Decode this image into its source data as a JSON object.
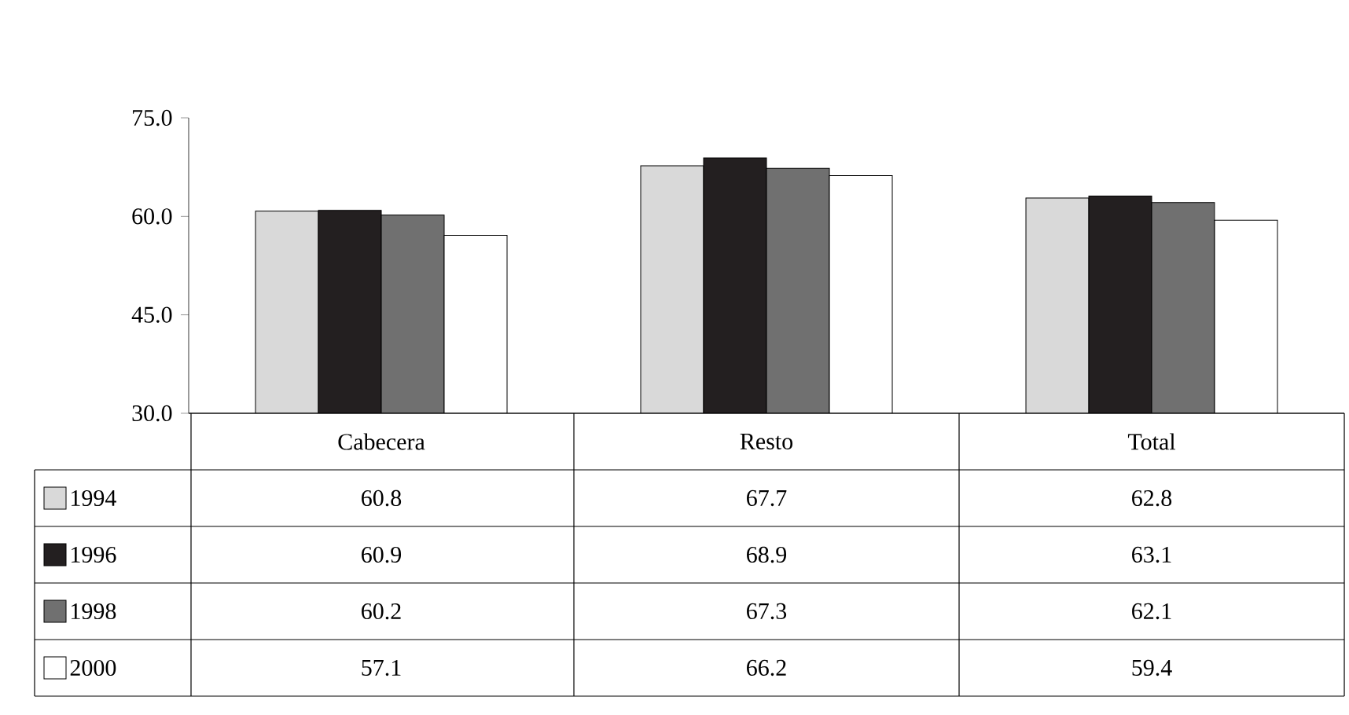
{
  "chart_data": {
    "type": "bar",
    "categories": [
      "Cabecera",
      "Resto",
      "Total"
    ],
    "series": [
      {
        "name": "1994",
        "color": "#d9d9d9",
        "values": [
          60.8,
          67.7,
          62.8
        ]
      },
      {
        "name": "1996",
        "color": "#231f20",
        "values": [
          60.9,
          68.9,
          63.1
        ]
      },
      {
        "name": "1998",
        "color": "#707070",
        "values": [
          60.2,
          67.3,
          62.1
        ]
      },
      {
        "name": "2000",
        "color": "#ffffff",
        "values": [
          57.1,
          66.2,
          59.4
        ]
      }
    ],
    "ylim": [
      30,
      75
    ],
    "yticks": [
      {
        "value": 30,
        "label": "30.0"
      },
      {
        "value": 45,
        "label": "45.0"
      },
      {
        "value": 60,
        "label": "60.0"
      },
      {
        "value": 75,
        "label": "75.0"
      }
    ],
    "data_labels": true,
    "legend": "bottom left",
    "grid": false
  }
}
